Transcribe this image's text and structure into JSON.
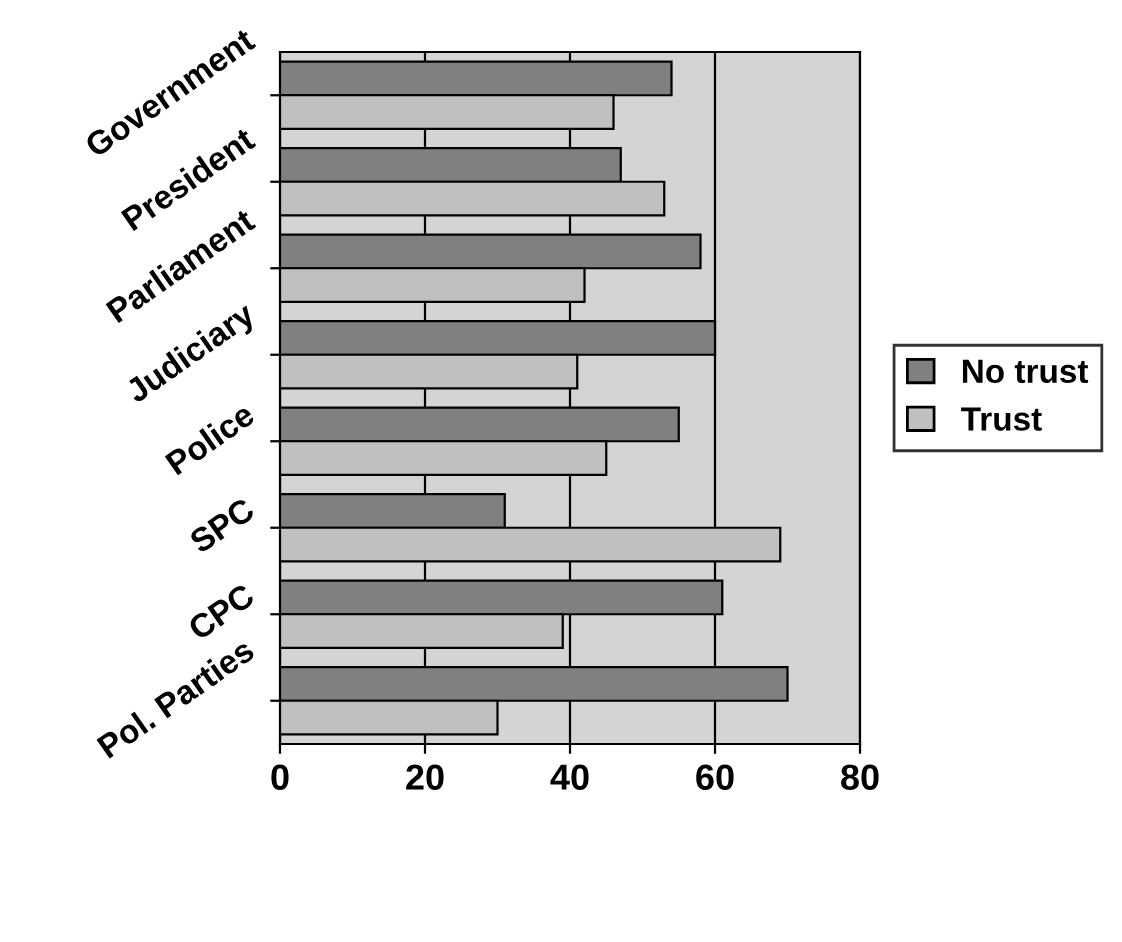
{
  "chart_data": {
    "type": "bar",
    "orientation": "horizontal",
    "categories": [
      "Government",
      "President",
      "Parliament",
      "Judiciary",
      "Police",
      "SPC",
      "CPC",
      "Pol. Parties"
    ],
    "series": [
      {
        "name": "No trust",
        "color": "#808080",
        "values": [
          54,
          47,
          58,
          60,
          55,
          31,
          61,
          70
        ]
      },
      {
        "name": "Trust",
        "color": "#c0c0c0",
        "values": [
          46,
          53,
          42,
          41,
          45,
          69,
          39,
          30
        ]
      }
    ],
    "xlim": [
      0,
      80
    ],
    "xticks": [
      0,
      20,
      40,
      60,
      80
    ],
    "grid": "x",
    "legend": "right"
  }
}
